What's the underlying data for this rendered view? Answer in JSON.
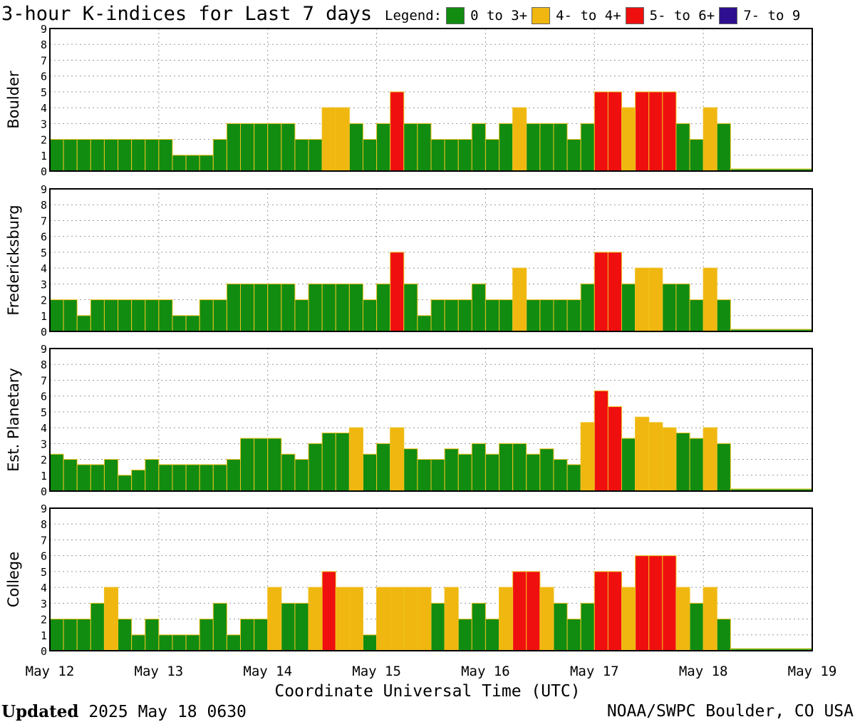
{
  "title": "3-hour K-indices for Last 7 days",
  "legend": {
    "label": "Legend:",
    "items": [
      {
        "label": "0 to 3+",
        "color": "#118c11"
      },
      {
        "label": "4- to 4+",
        "color": "#efb70f"
      },
      {
        "label": "5- to 6+",
        "color": "#ef0f0f"
      },
      {
        "label": "7- to 9",
        "color": "#2e0f8f"
      }
    ]
  },
  "footer": {
    "updated_label": "Updated",
    "updated_value": "2025 May 18 0630",
    "credit": "NOAA/SWPC Boulder, CO USA"
  },
  "chart_data": {
    "type": "bar",
    "title": "3-hour K-indices for Last 7 days",
    "xlabel": "Coordinate Universal Time (UTC)",
    "x_ticks": [
      "May 12",
      "May 13",
      "May 14",
      "May 15",
      "May 16",
      "May 17",
      "May 18",
      "May 19"
    ],
    "ylim": [
      0,
      9
    ],
    "y_ticks": [
      "0",
      "1",
      "2",
      "3",
      "4",
      "5",
      "6",
      "7",
      "8",
      "9"
    ],
    "interval_hours": 3,
    "series": [
      {
        "name": "Boulder",
        "values": [
          2,
          2,
          2,
          2,
          2,
          2,
          2,
          2,
          2,
          1,
          1,
          1,
          2,
          3,
          3,
          3,
          3,
          3,
          2,
          2,
          4,
          4,
          3,
          2,
          3,
          5,
          3,
          3,
          2,
          2,
          2,
          3,
          2,
          3,
          4,
          3,
          3,
          3,
          2,
          3,
          5,
          5,
          4,
          5,
          5,
          5,
          3,
          2,
          4,
          3
        ]
      },
      {
        "name": "Fredericksburg",
        "values": [
          2,
          2,
          1,
          2,
          2,
          2,
          2,
          2,
          2,
          1,
          1,
          2,
          2,
          3,
          3,
          3,
          3,
          3,
          2,
          3,
          3,
          3,
          3,
          2,
          3,
          5,
          3,
          1,
          2,
          2,
          2,
          3,
          2,
          2,
          4,
          2,
          2,
          2,
          2,
          3,
          5,
          5,
          3,
          4,
          4,
          3,
          3,
          2,
          4,
          2
        ]
      },
      {
        "name": "Est. Planetary",
        "values": [
          2.33,
          2,
          1.67,
          1.67,
          2,
          1,
          1.33,
          2,
          1.67,
          1.67,
          1.67,
          1.67,
          1.67,
          2,
          3.33,
          3.33,
          3.33,
          2.33,
          2,
          3,
          3.67,
          3.67,
          4,
          2.33,
          3,
          4,
          2.67,
          2,
          2,
          2.67,
          2.33,
          3,
          2.33,
          3,
          3,
          2.33,
          2.67,
          2,
          1.67,
          4.33,
          6.33,
          5.33,
          3.33,
          4.67,
          4.33,
          4,
          3.67,
          3.33,
          4,
          3
        ]
      },
      {
        "name": "College",
        "values": [
          2,
          2,
          2,
          3,
          4,
          2,
          1,
          2,
          1,
          1,
          1,
          2,
          3,
          1,
          2,
          2,
          4,
          3,
          3,
          4,
          5,
          4,
          4,
          1,
          4,
          4,
          4,
          4,
          3,
          4,
          2,
          3,
          2,
          4,
          5,
          5,
          4,
          3,
          2,
          3,
          5,
          5,
          4,
          6,
          6,
          6,
          4,
          3,
          4,
          2
        ]
      }
    ]
  }
}
